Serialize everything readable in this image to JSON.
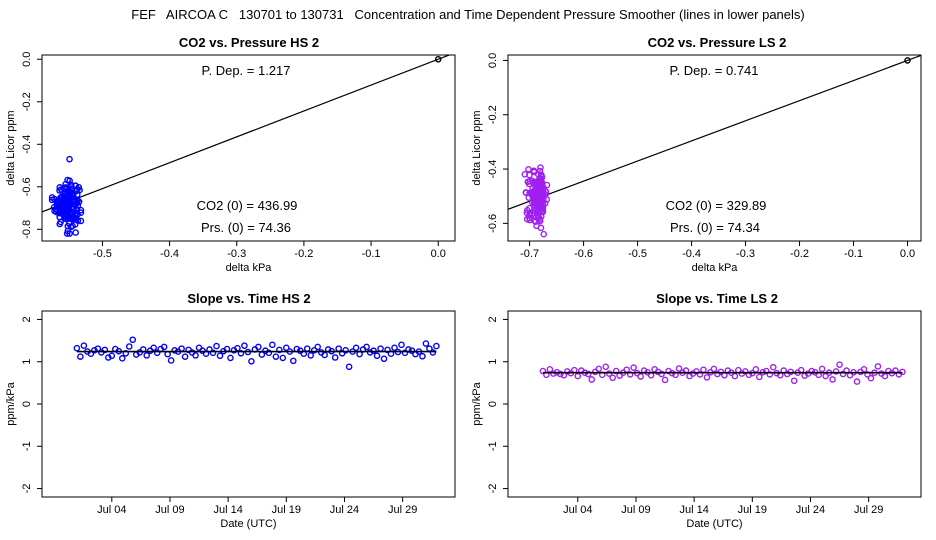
{
  "figure": {
    "title": "FEF   AIRCOA C   130701 to 130731   Concentration and Time Dependent Pressure Smoother (lines in lower panels)"
  },
  "colors": {
    "hs": "#0000ff",
    "ls": "#a020f0",
    "line": "#000000"
  },
  "panels": {
    "hs_scatter": {
      "title": "CO2 vs. Pressure HS 2",
      "p_dep": "P. Dep. =  1.217",
      "co2_zero": "CO2 (0) =  436.99",
      "prs_zero": "Prs. (0) =  74.36"
    },
    "ls_scatter": {
      "title": "CO2 vs. Pressure LS 2",
      "p_dep": "P. Dep. =  0.741",
      "co2_zero": "CO2 (0) =  329.89",
      "prs_zero": "Prs. (0) =  74.34"
    },
    "hs_slope": {
      "title": "Slope vs. Time HS 2"
    },
    "ls_slope": {
      "title": "Slope vs. Time LS 2"
    }
  },
  "chart_data": [
    {
      "id": "hs_scatter",
      "type": "scatter",
      "title": "CO2 vs. Pressure HS 2",
      "xlabel": "delta kPa",
      "ylabel": "delta Licor ppm",
      "xlim": [
        -0.59,
        0.025
      ],
      "ylim": [
        -0.855,
        0.02
      ],
      "xticks": [
        -0.5,
        -0.4,
        -0.3,
        -0.2,
        -0.1,
        0.0
      ],
      "xtick_labels": [
        "-0.5",
        "-0.4",
        "-0.3",
        "-0.2",
        "-0.1",
        "0.0"
      ],
      "yticks": [
        0.0,
        -0.2,
        -0.4,
        -0.6,
        -0.8
      ],
      "ytick_labels": [
        "0.0",
        "-0.2",
        "-0.4",
        "-0.6",
        "-0.8"
      ],
      "color": "#0000ff",
      "cluster": {
        "x_center": -0.553,
        "x_spread": 0.009,
        "y_center": -0.68,
        "y_spread": 0.05,
        "count": 170,
        "x_min": -0.575,
        "x_max": -0.532,
        "y_min": -0.82,
        "y_max": -0.56
      },
      "extra_points": [
        [
          -0.549,
          -0.47
        ],
        [
          -0.537,
          -0.73
        ],
        [
          -0.532,
          -0.71
        ]
      ],
      "origin_point": [
        0.0,
        0.0
      ],
      "fit_line": {
        "slope": 1.217,
        "intercept": 0.0
      },
      "grid": false
    },
    {
      "id": "ls_scatter",
      "type": "scatter",
      "title": "CO2 vs. Pressure LS 2",
      "xlabel": "delta kPa",
      "ylabel": "delta Licor ppm",
      "xlim": [
        -0.74,
        0.025
      ],
      "ylim": [
        -0.665,
        0.02
      ],
      "xticks": [
        -0.7,
        -0.6,
        -0.5,
        -0.4,
        -0.3,
        -0.2,
        -0.1,
        0.0
      ],
      "xtick_labels": [
        "-0.7",
        "-0.6",
        "-0.5",
        "-0.4",
        "-0.3",
        "-0.2",
        "-0.1",
        "0.0"
      ],
      "yticks": [
        0.0,
        -0.2,
        -0.4,
        -0.6
      ],
      "ytick_labels": [
        "0.0",
        "-0.2",
        "-0.4",
        "-0.6"
      ],
      "color": "#a020f0",
      "cluster": {
        "x_center": -0.685,
        "x_spread": 0.009,
        "y_center": -0.5,
        "y_spread": 0.045,
        "count": 170,
        "x_min": -0.71,
        "x_max": -0.66,
        "y_min": -0.64,
        "y_max": -0.37
      },
      "extra_points": [],
      "origin_point": [
        0.0,
        0.0
      ],
      "fit_line": {
        "slope": 0.741,
        "intercept": 0.0
      },
      "grid": false
    },
    {
      "id": "hs_slope",
      "type": "scatter",
      "title": "Slope vs. Time HS 2",
      "xlabel": "Date (UTC)",
      "ylabel": "ppm/kPa",
      "xlim": [
        -3.0,
        32.5
      ],
      "ylim": [
        -2.2,
        2.2
      ],
      "xticks": [
        3,
        8,
        13,
        18,
        23,
        28
      ],
      "xtick_labels": [
        "Jul 04",
        "Jul 09",
        "Jul 14",
        "Jul 19",
        "Jul 24",
        "Jul 29"
      ],
      "yticks": [
        2,
        1,
        0,
        -1,
        -2
      ],
      "ytick_labels": [
        "2",
        "1",
        "0",
        "-1",
        "-2"
      ],
      "color": "#0000ff",
      "x": [
        0.0,
        0.3,
        0.6,
        0.9,
        1.2,
        1.5,
        1.8,
        2.1,
        2.4,
        2.7,
        3.0,
        3.3,
        3.6,
        3.9,
        4.2,
        4.5,
        4.8,
        5.1,
        5.4,
        5.7,
        6.0,
        6.3,
        6.6,
        6.9,
        7.2,
        7.5,
        7.8,
        8.1,
        8.4,
        8.7,
        9.0,
        9.3,
        9.6,
        9.9,
        10.2,
        10.5,
        10.8,
        11.1,
        11.4,
        11.7,
        12.0,
        12.3,
        12.6,
        12.9,
        13.2,
        13.5,
        13.8,
        14.1,
        14.4,
        14.7,
        15.0,
        15.3,
        15.6,
        15.9,
        16.2,
        16.5,
        16.8,
        17.1,
        17.4,
        17.7,
        18.0,
        18.3,
        18.6,
        18.9,
        19.2,
        19.5,
        19.8,
        20.1,
        20.4,
        20.7,
        21.0,
        21.3,
        21.6,
        21.9,
        22.2,
        22.5,
        22.8,
        23.1,
        23.4,
        23.7,
        24.0,
        24.3,
        24.6,
        24.9,
        25.2,
        25.5,
        25.8,
        26.1,
        26.4,
        26.7,
        27.0,
        27.3,
        27.6,
        27.9,
        28.2,
        28.5,
        28.8,
        29.1,
        29.4,
        29.7,
        30.0,
        30.3,
        30.6,
        30.9
      ],
      "y": [
        1.32,
        1.12,
        1.38,
        1.24,
        1.19,
        1.27,
        1.31,
        1.22,
        1.28,
        1.1,
        1.14,
        1.3,
        1.25,
        1.08,
        1.2,
        1.36,
        1.52,
        1.17,
        1.22,
        1.29,
        1.15,
        1.26,
        1.33,
        1.21,
        1.3,
        1.35,
        1.18,
        1.03,
        1.27,
        1.24,
        1.31,
        1.12,
        1.28,
        1.22,
        1.15,
        1.33,
        1.26,
        1.19,
        1.29,
        1.21,
        1.37,
        1.14,
        1.25,
        1.3,
        1.09,
        1.27,
        1.32,
        1.2,
        1.38,
        1.23,
        1.01,
        1.29,
        1.35,
        1.17,
        1.26,
        1.21,
        1.4,
        1.12,
        1.28,
        1.09,
        1.33,
        1.24,
        1.02,
        1.3,
        1.26,
        1.19,
        1.31,
        1.15,
        1.27,
        1.35,
        1.22,
        1.16,
        1.29,
        1.25,
        1.1,
        1.31,
        1.2,
        1.27,
        0.88,
        1.24,
        1.33,
        1.18,
        1.29,
        1.35,
        1.22,
        1.26,
        1.14,
        1.31,
        1.07,
        1.28,
        1.19,
        1.33,
        1.23,
        1.4,
        1.21,
        1.29,
        1.26,
        1.18,
        1.24,
        1.13,
        1.43,
        1.31,
        1.22,
        1.37
      ],
      "smoother": {
        "x": [
          0.0,
          30.9
        ],
        "y": [
          1.24,
          1.24
        ]
      },
      "grid": false
    },
    {
      "id": "ls_slope",
      "type": "scatter",
      "title": "Slope vs. Time LS 2",
      "xlabel": "Date (UTC)",
      "ylabel": "ppm/kPa",
      "xlim": [
        -3.0,
        32.5
      ],
      "ylim": [
        -2.2,
        2.2
      ],
      "xticks": [
        3,
        8,
        13,
        18,
        23,
        28
      ],
      "xtick_labels": [
        "Jul 04",
        "Jul 09",
        "Jul 14",
        "Jul 19",
        "Jul 24",
        "Jul 29"
      ],
      "yticks": [
        2,
        1,
        0,
        -1,
        -2
      ],
      "ytick_labels": [
        "2",
        "1",
        "0",
        "-1",
        "-2"
      ],
      "color": "#a020f0",
      "x": [
        0.0,
        0.3,
        0.6,
        0.9,
        1.2,
        1.5,
        1.8,
        2.1,
        2.4,
        2.7,
        3.0,
        3.3,
        3.6,
        3.9,
        4.2,
        4.5,
        4.8,
        5.1,
        5.4,
        5.7,
        6.0,
        6.3,
        6.6,
        6.9,
        7.2,
        7.5,
        7.8,
        8.1,
        8.4,
        8.7,
        9.0,
        9.3,
        9.6,
        9.9,
        10.2,
        10.5,
        10.8,
        11.1,
        11.4,
        11.7,
        12.0,
        12.3,
        12.6,
        12.9,
        13.2,
        13.5,
        13.8,
        14.1,
        14.4,
        14.7,
        15.0,
        15.3,
        15.6,
        15.9,
        16.2,
        16.5,
        16.8,
        17.1,
        17.4,
        17.7,
        18.0,
        18.3,
        18.6,
        18.9,
        19.2,
        19.5,
        19.8,
        20.1,
        20.4,
        20.7,
        21.0,
        21.3,
        21.6,
        21.9,
        22.2,
        22.5,
        22.8,
        23.1,
        23.4,
        23.7,
        24.0,
        24.3,
        24.6,
        24.9,
        25.2,
        25.5,
        25.8,
        26.1,
        26.4,
        26.7,
        27.0,
        27.3,
        27.6,
        27.9,
        28.2,
        28.5,
        28.8,
        29.1,
        29.4,
        29.7,
        30.0,
        30.3,
        30.6,
        30.9
      ],
      "y": [
        0.78,
        0.69,
        0.82,
        0.72,
        0.75,
        0.71,
        0.68,
        0.77,
        0.73,
        0.8,
        0.66,
        0.79,
        0.74,
        0.71,
        0.58,
        0.76,
        0.83,
        0.69,
        0.88,
        0.72,
        0.62,
        0.78,
        0.67,
        0.74,
        0.81,
        0.7,
        0.86,
        0.73,
        0.65,
        0.79,
        0.75,
        0.68,
        0.82,
        0.76,
        0.71,
        0.57,
        0.78,
        0.73,
        0.69,
        0.84,
        0.74,
        0.79,
        0.66,
        0.72,
        0.77,
        0.7,
        0.81,
        0.63,
        0.75,
        0.83,
        0.71,
        0.76,
        0.68,
        0.79,
        0.74,
        0.66,
        0.8,
        0.72,
        0.77,
        0.69,
        0.73,
        0.82,
        0.64,
        0.75,
        0.78,
        0.7,
        0.87,
        0.73,
        0.68,
        0.79,
        0.71,
        0.76,
        0.55,
        0.74,
        0.8,
        0.67,
        0.72,
        0.78,
        0.75,
        0.69,
        0.83,
        0.66,
        0.74,
        0.58,
        0.77,
        0.93,
        0.71,
        0.79,
        0.68,
        0.75,
        0.53,
        0.76,
        0.82,
        0.7,
        0.61,
        0.74,
        0.89,
        0.72,
        0.66,
        0.78,
        0.73,
        0.79,
        0.7,
        0.76
      ],
      "smoother": {
        "x": [
          0.0,
          30.9
        ],
        "y": [
          0.74,
          0.74
        ]
      },
      "grid": false
    }
  ]
}
